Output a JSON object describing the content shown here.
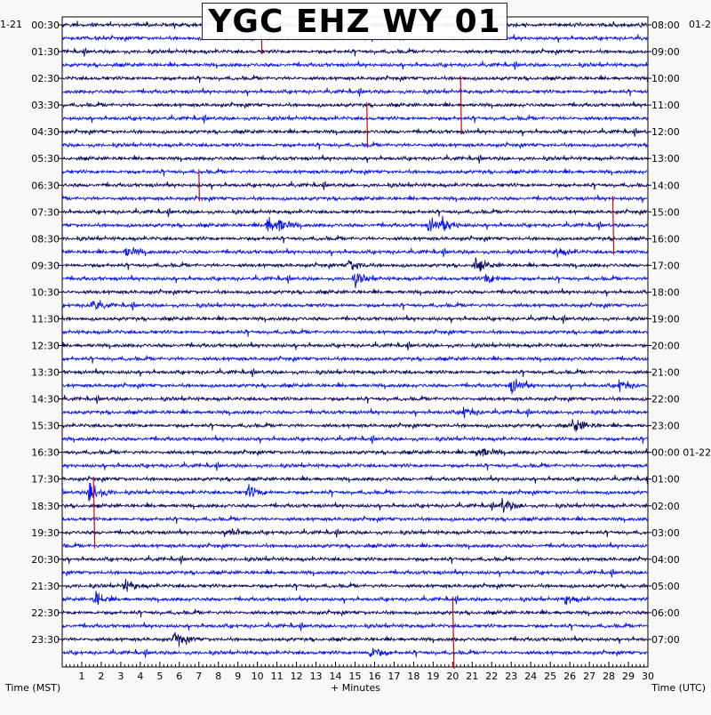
{
  "chart_data": {
    "type": "helicorder",
    "title": "YGC EHZ WY 01",
    "xlabel": "+ Minutes",
    "left_axis_label": "Time (MST)",
    "right_axis_label": "Time (UTC)",
    "left_date_fragment": "1-21",
    "right_date_fragment": "01-2",
    "x_ticks": [
      "1",
      "2",
      "3",
      "4",
      "5",
      "6",
      "7",
      "8",
      "9",
      "10",
      "11",
      "12",
      "13",
      "14",
      "15",
      "16",
      "17",
      "18",
      "19",
      "20",
      "21",
      "22",
      "23",
      "24",
      "25",
      "26",
      "27",
      "28",
      "29",
      "30"
    ],
    "xlim": [
      0,
      30
    ],
    "rows_per_hour": 2,
    "total_rows": 48,
    "left_time_labels": [
      "00:30",
      "01:30",
      "02:30",
      "03:30",
      "04:30",
      "05:30",
      "06:30",
      "07:30",
      "08:30",
      "09:30",
      "10:30",
      "11:30",
      "12:30",
      "13:30",
      "14:30",
      "15:30",
      "16:30",
      "17:30",
      "18:30",
      "19:30",
      "20:30",
      "21:30",
      "22:30",
      "23:30"
    ],
    "right_time_labels": [
      "08:00",
      "09:00",
      "10:00",
      "11:00",
      "12:00",
      "13:00",
      "14:00",
      "15:00",
      "16:00",
      "17:00",
      "18:00",
      "19:00",
      "20:00",
      "21:00",
      "22:00",
      "23:00",
      "00:00 01-22",
      "01:00",
      "02:00",
      "03:00",
      "04:00",
      "05:00",
      "06:00",
      "07:00"
    ],
    "trace_colors": [
      "#0a0a5e",
      "#0a16f0"
    ],
    "marker_color": "#dd0000",
    "events": [
      {
        "row": 15,
        "minute": 10.5,
        "amp": 10
      },
      {
        "row": 15,
        "minute": 11.0,
        "amp": 8
      },
      {
        "row": 15,
        "minute": 18.8,
        "amp": 9
      },
      {
        "row": 15,
        "minute": 19.5,
        "amp": 7
      },
      {
        "row": 17,
        "minute": 3.3,
        "amp": 7
      },
      {
        "row": 17,
        "minute": 25.3,
        "amp": 7
      },
      {
        "row": 18,
        "minute": 14.7,
        "amp": 8
      },
      {
        "row": 18,
        "minute": 21.2,
        "amp": 7
      },
      {
        "row": 19,
        "minute": 15.0,
        "amp": 8
      },
      {
        "row": 19,
        "minute": 21.7,
        "amp": 7
      },
      {
        "row": 21,
        "minute": 1.5,
        "amp": 7
      },
      {
        "row": 27,
        "minute": 23.0,
        "amp": 10
      },
      {
        "row": 27,
        "minute": 28.5,
        "amp": 8
      },
      {
        "row": 29,
        "minute": 20.5,
        "amp": 8
      },
      {
        "row": 30,
        "minute": 26.2,
        "amp": 9
      },
      {
        "row": 32,
        "minute": 21.3,
        "amp": 9
      },
      {
        "row": 35,
        "minute": 1.4,
        "amp": 16
      },
      {
        "row": 35,
        "minute": 9.5,
        "amp": 8
      },
      {
        "row": 36,
        "minute": 22.5,
        "amp": 9
      },
      {
        "row": 38,
        "minute": 8.5,
        "amp": 7
      },
      {
        "row": 42,
        "minute": 3.2,
        "amp": 8
      },
      {
        "row": 43,
        "minute": 1.7,
        "amp": 8
      },
      {
        "row": 43,
        "minute": 25.8,
        "amp": 7
      },
      {
        "row": 46,
        "minute": 5.8,
        "amp": 9
      },
      {
        "row": 47,
        "minute": 15.8,
        "amp": 8
      }
    ],
    "red_markers": [
      {
        "minute": 10.2,
        "row_start": 0,
        "row_end": 2
      },
      {
        "minute": 15.6,
        "row_start": 6,
        "row_end": 9
      },
      {
        "minute": 20.4,
        "row_start": 4,
        "row_end": 8
      },
      {
        "minute": 7.0,
        "row_start": 11,
        "row_end": 13
      },
      {
        "minute": 28.2,
        "row_start": 13,
        "row_end": 17
      },
      {
        "minute": 1.6,
        "row_start": 34,
        "row_end": 39
      },
      {
        "minute": 20.0,
        "row_start": 43,
        "row_end": 48
      }
    ]
  }
}
